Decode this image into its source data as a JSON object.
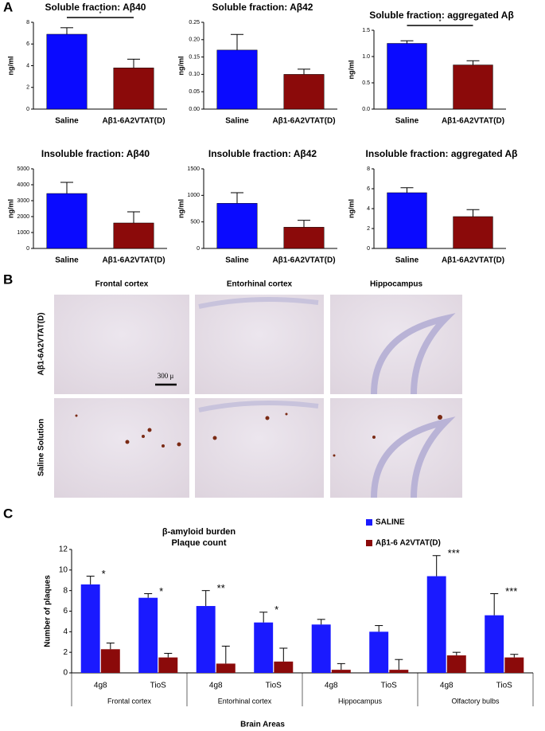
{
  "panel_labels": [
    "A",
    "B",
    "C"
  ],
  "chart_data": [
    {
      "type": "bar",
      "title": "Soluble fraction: Aβ40",
      "ylabel": "ng/ml",
      "categories": [
        "Saline",
        "Aβ1-6A2VTAT(D)"
      ],
      "values": [
        6.9,
        3.8
      ],
      "errors": [
        0.6,
        0.8
      ],
      "colors": [
        "#0a0aff",
        "#8b0a0a"
      ],
      "ylim": [
        0,
        8
      ],
      "yticks": [
        0,
        2,
        4,
        6,
        8
      ],
      "significance": "*"
    },
    {
      "type": "bar",
      "title": "Soluble fraction: Aβ42",
      "ylabel": "ng/ml",
      "categories": [
        "Saline",
        "Aβ1-6A2VTAT(D)"
      ],
      "values": [
        0.17,
        0.1
      ],
      "errors": [
        0.045,
        0.015
      ],
      "colors": [
        "#0a0aff",
        "#8b0a0a"
      ],
      "ylim": [
        0,
        0.25
      ],
      "yticks": [
        {
          "value": 0,
          "label": "0.00"
        },
        0.05,
        {
          "value": 0.1,
          "label": "0.10"
        },
        0.15,
        {
          "value": 0.2,
          "label": "0.20"
        },
        0.25
      ]
    },
    {
      "type": "bar",
      "title": "Soluble fraction: aggregated Aβ",
      "ylabel": "ng/ml",
      "categories": [
        "Saline",
        "Aβ1-6A2VTAT(D)"
      ],
      "values": [
        1.25,
        0.84
      ],
      "errors": [
        0.05,
        0.08
      ],
      "colors": [
        "#0a0aff",
        "#8b0a0a"
      ],
      "ylim": [
        0,
        1.5
      ],
      "yticks": [
        {
          "value": 0,
          "label": "0.0"
        },
        0.5,
        {
          "value": 1,
          "label": "1.0"
        },
        1.5
      ],
      "significance": "*"
    },
    {
      "type": "bar",
      "title": "Insoluble fraction: Aβ40",
      "ylabel": "ng/ml",
      "categories": [
        "Saline",
        "Aβ1-6A2VTAT(D)"
      ],
      "values": [
        3450,
        1600
      ],
      "errors": [
        700,
        700
      ],
      "colors": [
        "#0a0aff",
        "#8b0a0a"
      ],
      "ylim": [
        0,
        5000
      ],
      "yticks": [
        0,
        1000,
        2000,
        3000,
        4000,
        5000
      ]
    },
    {
      "type": "bar",
      "title": "Insoluble fraction: Aβ42",
      "ylabel": "ng/ml",
      "categories": [
        "Saline",
        "Aβ1-6A2VTAT(D)"
      ],
      "values": [
        850,
        400
      ],
      "errors": [
        200,
        130
      ],
      "colors": [
        "#0a0aff",
        "#8b0a0a"
      ],
      "ylim": [
        0,
        1500
      ],
      "yticks": [
        0,
        500,
        1000,
        1500
      ]
    },
    {
      "type": "bar",
      "title": "Insoluble fraction: aggregated Aβ",
      "ylabel": "ng/ml",
      "categories": [
        "Saline",
        "Aβ1-6A2VTAT(D)"
      ],
      "values": [
        5.6,
        3.2
      ],
      "errors": [
        0.5,
        0.7
      ],
      "colors": [
        "#0a0aff",
        "#8b0a0a"
      ],
      "ylim": [
        0,
        8
      ],
      "yticks": [
        0,
        2,
        4,
        6,
        8
      ]
    },
    {
      "type": "bar",
      "title": "β-amyloid burden",
      "subtitle": "Plaque count",
      "ylabel": "Number of plaques",
      "xlabel": "Brain Areas",
      "categories": [
        "4g8",
        "TioS",
        "4g8",
        "TioS",
        "4g8",
        "TioS",
        "4g8",
        "TioS"
      ],
      "groups": [
        "Frontal cortex",
        "Entorhinal cortex",
        "Hippocampus",
        "Olfactory bulbs"
      ],
      "series": [
        {
          "name": "SALINE",
          "color": "#1a1aff",
          "values": [
            8.6,
            7.3,
            6.5,
            4.9,
            4.7,
            4.0,
            9.4,
            5.6
          ],
          "errors": [
            0.8,
            0.4,
            1.5,
            1.0,
            0.5,
            0.6,
            2.0,
            2.1
          ],
          "annotations": [
            "*",
            "*",
            "**",
            "*",
            null,
            null,
            "***",
            "***"
          ]
        },
        {
          "name": "Aβ1-6 A2VTAT(D)",
          "color": "#8b0a0a",
          "values": [
            2.3,
            1.5,
            0.9,
            1.1,
            0.3,
            0.3,
            1.7,
            1.5
          ],
          "errors": [
            0.6,
            0.4,
            1.7,
            1.3,
            0.6,
            1.0,
            0.3,
            0.3
          ]
        }
      ],
      "ylim": [
        0,
        12
      ],
      "yticks": [
        0,
        2,
        4,
        6,
        8,
        10,
        12
      ]
    }
  ],
  "images": {
    "columns": [
      "Frontal cortex",
      "Entorhinal cortex",
      "Hippocampus"
    ],
    "rows": [
      "Aβ1-6A2VTAT(D)",
      "Saline Solution"
    ],
    "scale_bar": "300 μ"
  }
}
